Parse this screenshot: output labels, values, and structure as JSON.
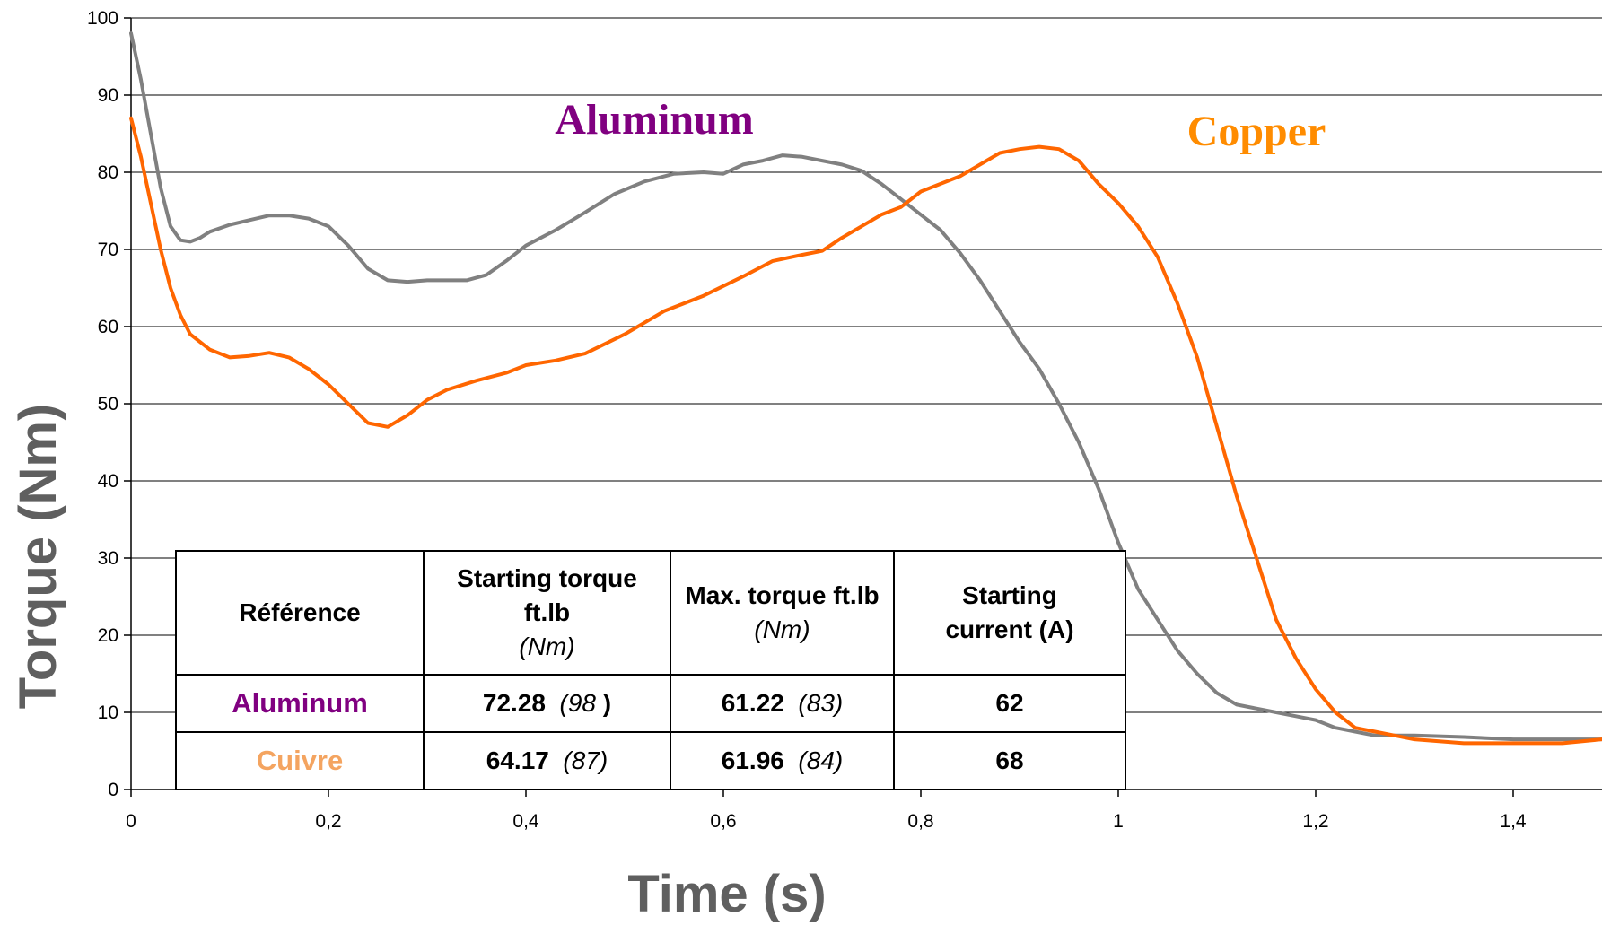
{
  "chart_data": {
    "type": "line",
    "title": "",
    "xlabel": "Time (s)",
    "ylabel": "Torque  (Nm)",
    "xlim": [
      0,
      1.49
    ],
    "ylim": [
      0,
      100
    ],
    "xticks": [
      0,
      0.2,
      0.4,
      0.6,
      0.8,
      1,
      1.2,
      1.4
    ],
    "xtick_labels": [
      "0",
      "0,2",
      "0,4",
      "0,6",
      "0,8",
      "1",
      "1,2",
      "1,4"
    ],
    "yticks": [
      0,
      10,
      20,
      30,
      40,
      50,
      60,
      70,
      80,
      90,
      100
    ],
    "ytick_labels": [
      "0",
      "10",
      "20",
      "30",
      "40",
      "50",
      "60",
      "70",
      "80",
      "90",
      "100"
    ],
    "grid": "horizontal",
    "series": [
      {
        "name": "Aluminum",
        "label_color": "#800080",
        "line_color": "#808080",
        "points": [
          [
            0,
            98
          ],
          [
            0.01,
            92
          ],
          [
            0.02,
            85
          ],
          [
            0.03,
            78
          ],
          [
            0.04,
            73
          ],
          [
            0.05,
            71.2
          ],
          [
            0.06,
            71
          ],
          [
            0.07,
            71.5
          ],
          [
            0.08,
            72.3
          ],
          [
            0.1,
            73.2
          ],
          [
            0.12,
            73.8
          ],
          [
            0.14,
            74.4
          ],
          [
            0.16,
            74.4
          ],
          [
            0.18,
            74
          ],
          [
            0.2,
            73
          ],
          [
            0.22,
            70.5
          ],
          [
            0.24,
            67.5
          ],
          [
            0.26,
            66
          ],
          [
            0.28,
            65.8
          ],
          [
            0.3,
            66
          ],
          [
            0.32,
            66
          ],
          [
            0.34,
            66
          ],
          [
            0.36,
            66.7
          ],
          [
            0.38,
            68.5
          ],
          [
            0.4,
            70.5
          ],
          [
            0.43,
            72.5
          ],
          [
            0.46,
            74.8
          ],
          [
            0.49,
            77.2
          ],
          [
            0.52,
            78.8
          ],
          [
            0.55,
            79.8
          ],
          [
            0.58,
            80
          ],
          [
            0.6,
            79.8
          ],
          [
            0.62,
            81
          ],
          [
            0.64,
            81.5
          ],
          [
            0.66,
            82.2
          ],
          [
            0.68,
            82
          ],
          [
            0.7,
            81.5
          ],
          [
            0.72,
            81
          ],
          [
            0.74,
            80.2
          ],
          [
            0.76,
            78.5
          ],
          [
            0.78,
            76.5
          ],
          [
            0.8,
            74.5
          ],
          [
            0.82,
            72.5
          ],
          [
            0.84,
            69.5
          ],
          [
            0.86,
            66
          ],
          [
            0.88,
            62
          ],
          [
            0.9,
            58
          ],
          [
            0.92,
            54.5
          ],
          [
            0.94,
            50
          ],
          [
            0.96,
            45
          ],
          [
            0.98,
            39
          ],
          [
            1.0,
            32
          ],
          [
            1.02,
            26
          ],
          [
            1.04,
            22
          ],
          [
            1.06,
            18
          ],
          [
            1.08,
            15
          ],
          [
            1.1,
            12.5
          ],
          [
            1.12,
            11
          ],
          [
            1.14,
            10.5
          ],
          [
            1.16,
            10
          ],
          [
            1.18,
            9.5
          ],
          [
            1.2,
            9
          ],
          [
            1.22,
            8
          ],
          [
            1.24,
            7.5
          ],
          [
            1.26,
            7
          ],
          [
            1.3,
            7
          ],
          [
            1.35,
            6.8
          ],
          [
            1.4,
            6.5
          ],
          [
            1.45,
            6.5
          ],
          [
            1.49,
            6.5
          ]
        ]
      },
      {
        "name": "Copper",
        "label_color": "#ff8c00",
        "line_color": "#ff6600",
        "points": [
          [
            0,
            87
          ],
          [
            0.01,
            82
          ],
          [
            0.02,
            76
          ],
          [
            0.03,
            70
          ],
          [
            0.04,
            65
          ],
          [
            0.05,
            61.5
          ],
          [
            0.06,
            59
          ],
          [
            0.08,
            57
          ],
          [
            0.1,
            56
          ],
          [
            0.12,
            56.2
          ],
          [
            0.14,
            56.6
          ],
          [
            0.16,
            56
          ],
          [
            0.18,
            54.5
          ],
          [
            0.2,
            52.5
          ],
          [
            0.22,
            50
          ],
          [
            0.24,
            47.5
          ],
          [
            0.26,
            47
          ],
          [
            0.28,
            48.5
          ],
          [
            0.3,
            50.5
          ],
          [
            0.32,
            51.8
          ],
          [
            0.35,
            53
          ],
          [
            0.38,
            54
          ],
          [
            0.4,
            55
          ],
          [
            0.43,
            55.6
          ],
          [
            0.46,
            56.5
          ],
          [
            0.5,
            59
          ],
          [
            0.54,
            62
          ],
          [
            0.58,
            64
          ],
          [
            0.62,
            66.5
          ],
          [
            0.65,
            68.5
          ],
          [
            0.68,
            69.3
          ],
          [
            0.7,
            69.8
          ],
          [
            0.72,
            71.5
          ],
          [
            0.74,
            73
          ],
          [
            0.76,
            74.5
          ],
          [
            0.78,
            75.5
          ],
          [
            0.8,
            77.5
          ],
          [
            0.82,
            78.5
          ],
          [
            0.84,
            79.5
          ],
          [
            0.86,
            81
          ],
          [
            0.88,
            82.5
          ],
          [
            0.9,
            83
          ],
          [
            0.92,
            83.3
          ],
          [
            0.94,
            83
          ],
          [
            0.96,
            81.5
          ],
          [
            0.98,
            78.5
          ],
          [
            1.0,
            76
          ],
          [
            1.02,
            73
          ],
          [
            1.04,
            69
          ],
          [
            1.06,
            63
          ],
          [
            1.08,
            56
          ],
          [
            1.1,
            47
          ],
          [
            1.12,
            38
          ],
          [
            1.14,
            30
          ],
          [
            1.16,
            22
          ],
          [
            1.18,
            17
          ],
          [
            1.2,
            13
          ],
          [
            1.22,
            10
          ],
          [
            1.24,
            8
          ],
          [
            1.26,
            7.5
          ],
          [
            1.28,
            7
          ],
          [
            1.3,
            6.5
          ],
          [
            1.35,
            6
          ],
          [
            1.4,
            6
          ],
          [
            1.45,
            6
          ],
          [
            1.49,
            6.5
          ]
        ]
      }
    ],
    "annotations": [
      {
        "text": "Aluminum",
        "x": 0.53,
        "y": 85
      },
      {
        "text": "Copper",
        "x": 1.14,
        "y": 83.5
      }
    ],
    "table": {
      "headers": [
        {
          "main": "Référence",
          "unit": ""
        },
        {
          "main": "Starting torque ft.lb",
          "unit": "(Nm)"
        },
        {
          "main": "Max. torque ft.lb",
          "unit": "(Nm)"
        },
        {
          "main": "Starting current (A)",
          "unit": ""
        }
      ],
      "rows": [
        {
          "name": "Aluminum",
          "color": "#800080",
          "starting_torque": "72.28",
          "starting_torque_nm": "(98 ",
          "starting_torque_close": ")",
          "max_torque": "61.22",
          "max_torque_nm": "(83)",
          "current": "62"
        },
        {
          "name": "Cuivre",
          "color": "#f4a460",
          "starting_torque": "64.17",
          "starting_torque_nm": "(87)",
          "starting_torque_close": "",
          "max_torque": "61.96",
          "max_torque_nm": "(84)",
          "current": "68"
        }
      ]
    }
  }
}
